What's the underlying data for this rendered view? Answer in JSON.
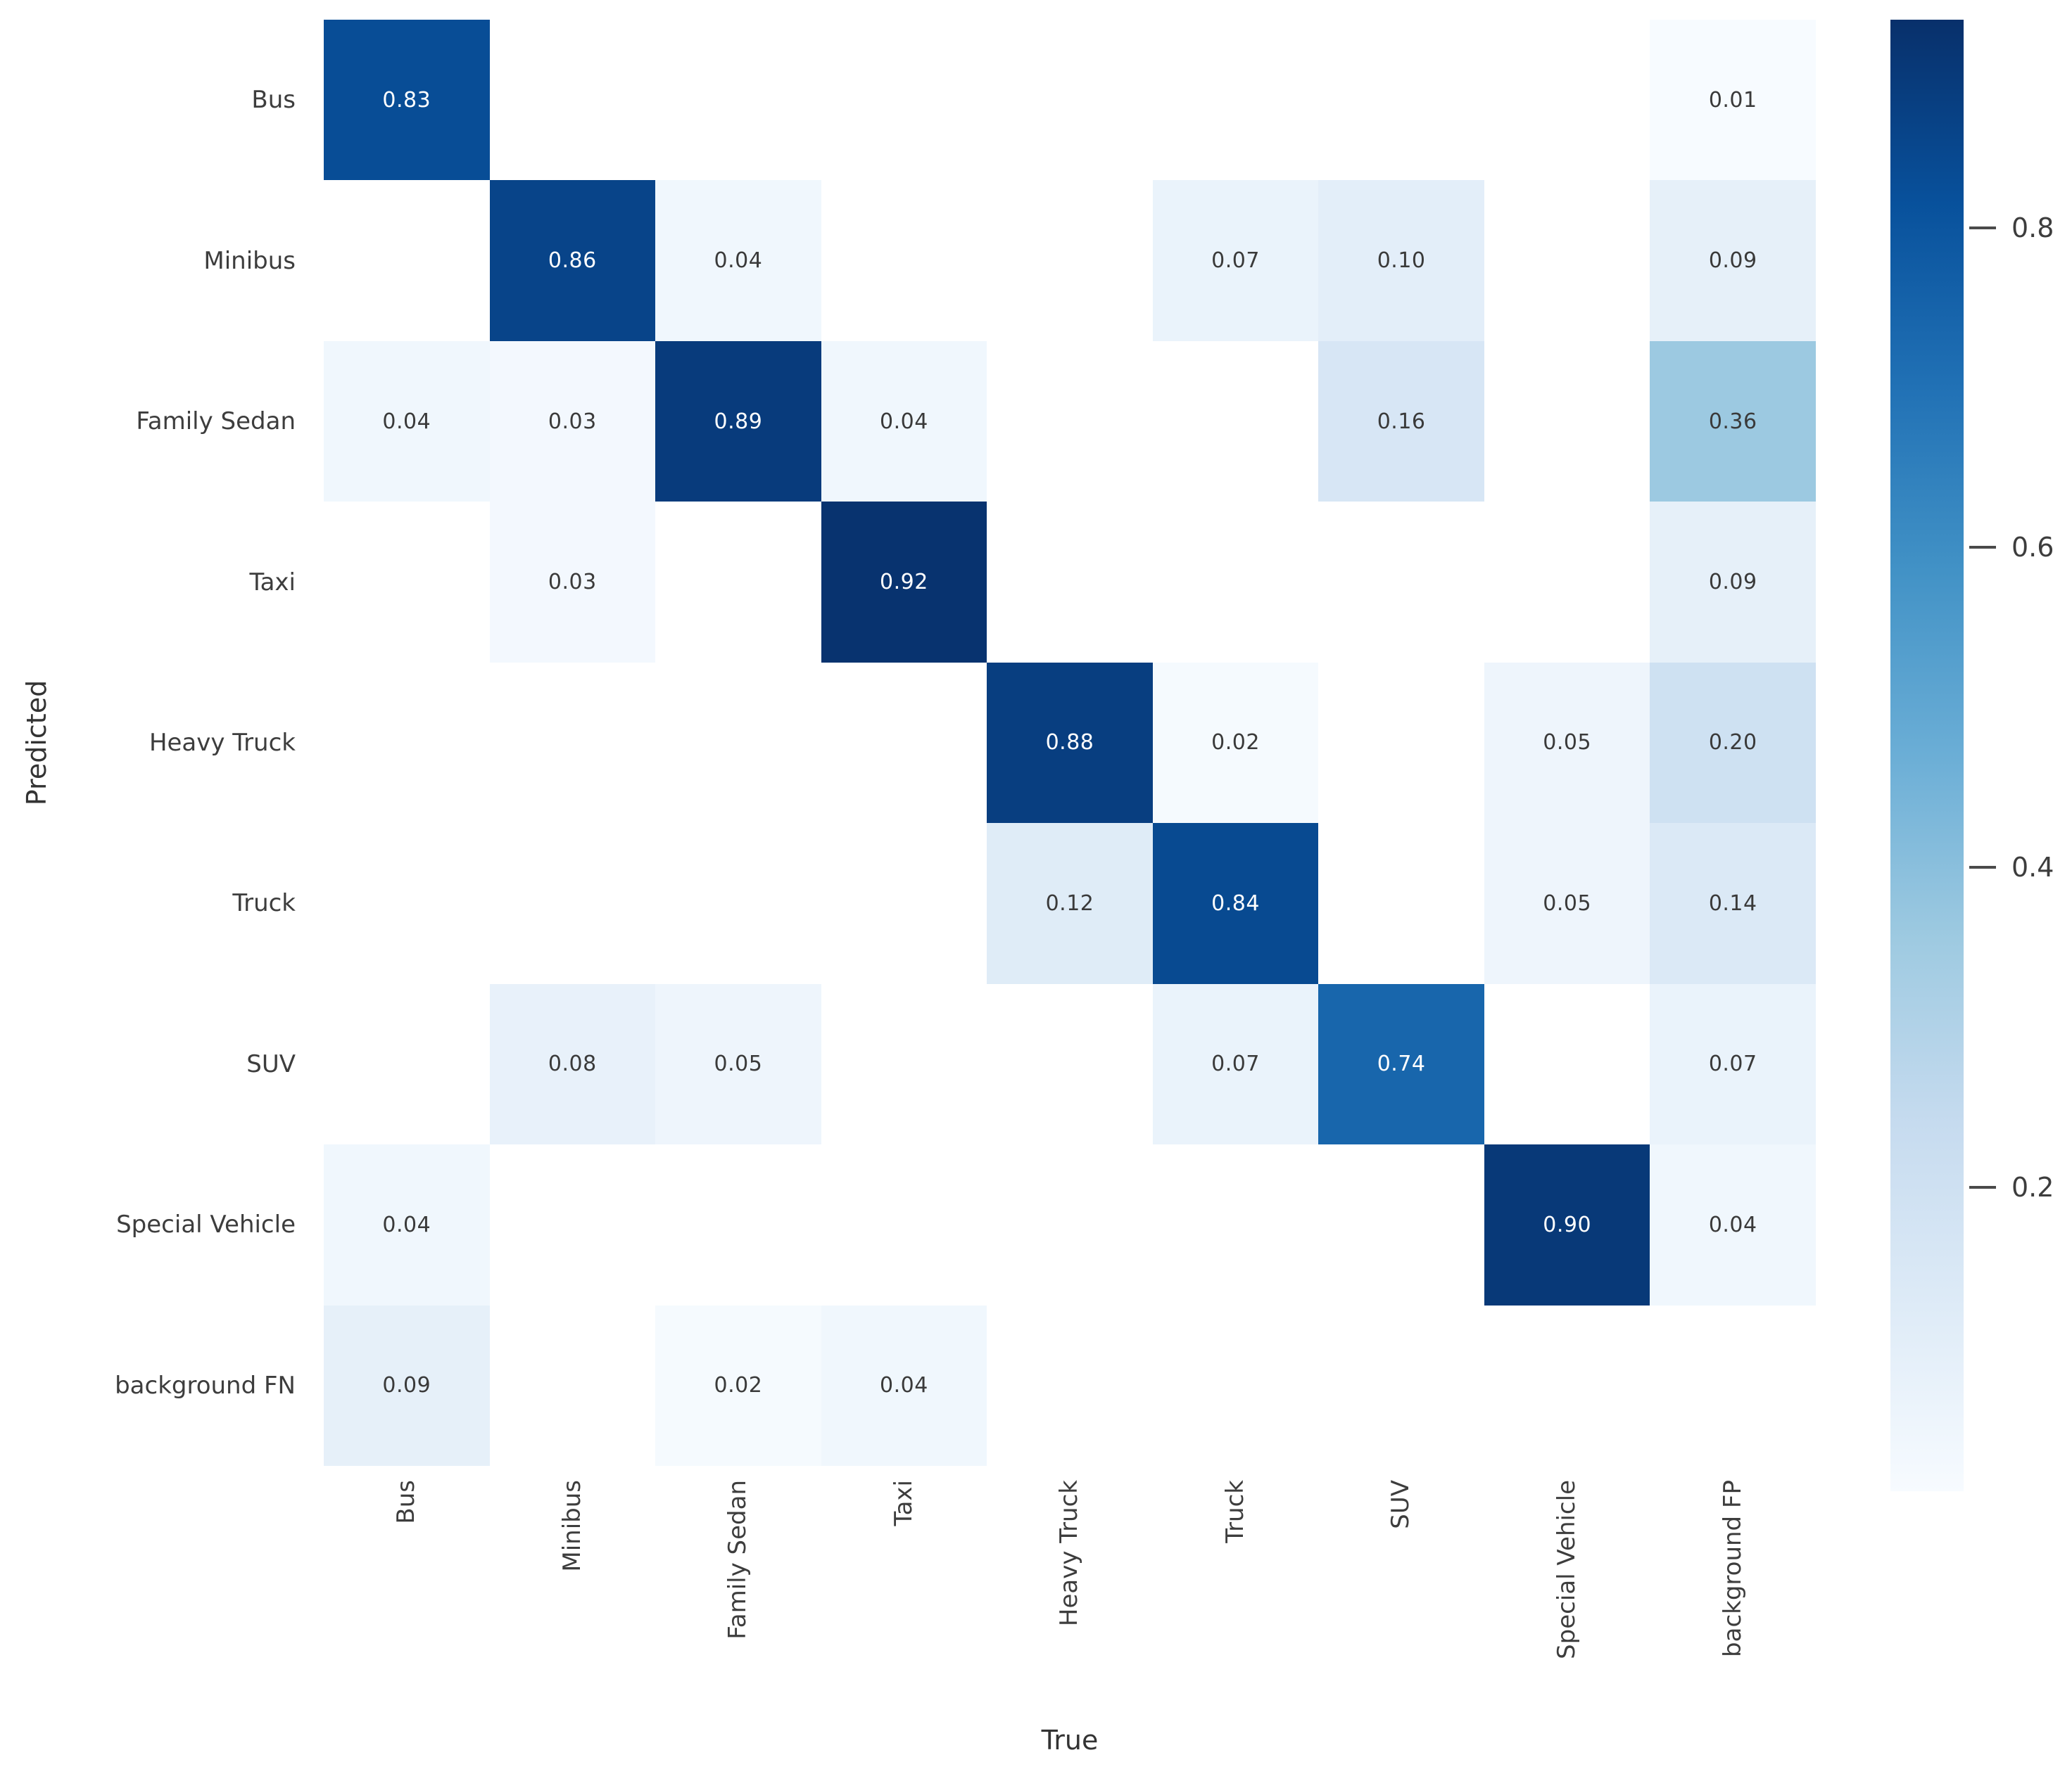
{
  "chart_data": {
    "type": "heatmap",
    "title": "",
    "xlabel": "True",
    "ylabel": "Predicted",
    "x_categories": [
      "Bus",
      "Minibus",
      "Family Sedan",
      "Taxi",
      "Heavy Truck",
      "Truck",
      "SUV",
      "Special Vehicle",
      "background FP"
    ],
    "y_categories": [
      "Bus",
      "Minibus",
      "Family Sedan",
      "Taxi",
      "Heavy Truck",
      "Truck",
      "SUV",
      "Special Vehicle",
      "background FN"
    ],
    "matrix": [
      [
        0.83,
        null,
        null,
        null,
        null,
        null,
        null,
        null,
        0.01
      ],
      [
        null,
        0.86,
        0.04,
        null,
        null,
        0.07,
        0.1,
        null,
        0.09
      ],
      [
        0.04,
        0.03,
        0.89,
        0.04,
        null,
        null,
        0.16,
        null,
        0.36
      ],
      [
        null,
        0.03,
        null,
        0.92,
        null,
        null,
        null,
        null,
        0.09
      ],
      [
        null,
        null,
        null,
        null,
        0.88,
        0.02,
        null,
        0.05,
        0.2
      ],
      [
        null,
        null,
        null,
        null,
        0.12,
        0.84,
        null,
        0.05,
        0.14
      ],
      [
        null,
        0.08,
        0.05,
        null,
        null,
        0.07,
        0.74,
        null,
        0.07
      ],
      [
        0.04,
        null,
        null,
        null,
        null,
        null,
        null,
        0.9,
        0.04
      ],
      [
        0.09,
        null,
        0.02,
        0.04,
        null,
        null,
        null,
        null,
        null
      ]
    ],
    "value_decimals": 2,
    "grid": "off",
    "legend_position": "none",
    "colorbar": {
      "position": "right",
      "ticks": [
        0.8,
        0.6,
        0.4,
        0.2
      ],
      "vmin": 0.01,
      "vmax": 0.93
    },
    "colormap": "Blues",
    "colors": {
      "cmap_anchors": [
        [
          0.0,
          "#f7fbff"
        ],
        [
          0.125,
          "#deebf7"
        ],
        [
          0.25,
          "#c6dbef"
        ],
        [
          0.375,
          "#9ecae1"
        ],
        [
          0.5,
          "#6baed6"
        ],
        [
          0.625,
          "#4292c6"
        ],
        [
          0.75,
          "#2171b5"
        ],
        [
          0.875,
          "#08519c"
        ],
        [
          1.0,
          "#08306b"
        ]
      ],
      "empty_cell": "#ffffff",
      "annot_dark": "#3a3a3a",
      "annot_light": "#ffffff",
      "tick_label": "#3d3d3d"
    }
  }
}
